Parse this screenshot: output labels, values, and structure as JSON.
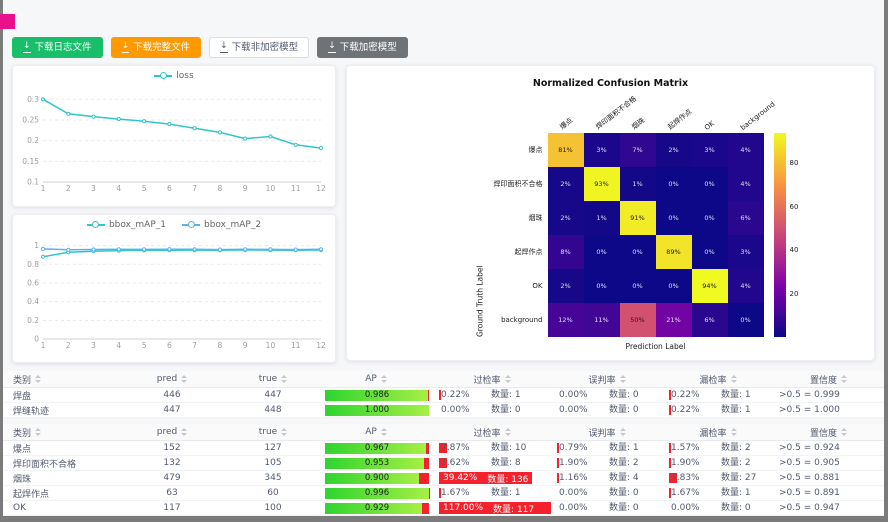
{
  "colors": {
    "accent_pink": "#ea0f8b",
    "series_teal": "#2ec7c9",
    "series_blue": "#5ab1ef",
    "bar_green_start": "#2fd42f",
    "bar_green_end": "#a6ef45",
    "bar_red": "#f5222d",
    "btn_green": "#19be6b",
    "btn_orange": "#ff9900",
    "btn_dark": "#6e7378"
  },
  "icons": {
    "download": "↓"
  },
  "toolbar": {
    "buttons": [
      {
        "id": "download-log-file",
        "label": "下载日志文件",
        "variant": "green"
      },
      {
        "id": "download-full-file",
        "label": "下载完整文件",
        "variant": "orange"
      },
      {
        "id": "download-unencrypted-model",
        "label": "下载非加密模型",
        "variant": "default"
      },
      {
        "id": "download-encrypted-model",
        "label": "下载加密模型",
        "variant": "dark"
      }
    ]
  },
  "chart_data": [
    {
      "type": "line",
      "legend": [
        "loss"
      ],
      "x": [
        1,
        2,
        3,
        4,
        5,
        6,
        7,
        8,
        9,
        10,
        11,
        12
      ],
      "series": [
        {
          "name": "loss",
          "color": "#2ec7c9",
          "values": [
            0.3,
            0.265,
            0.258,
            0.252,
            0.247,
            0.24,
            0.23,
            0.22,
            0.205,
            0.21,
            0.19,
            0.182
          ]
        }
      ],
      "yticks": [
        0.1,
        0.15,
        0.2,
        0.25,
        0.3
      ],
      "ylim": [
        0.1,
        0.32
      ],
      "grid": "dashed-horizontal",
      "legend_position": "top-center"
    },
    {
      "type": "line",
      "legend": [
        "bbox_mAP_1",
        "bbox_mAP_2"
      ],
      "x": [
        1,
        2,
        3,
        4,
        5,
        6,
        7,
        8,
        9,
        10,
        11,
        12
      ],
      "series": [
        {
          "name": "bbox_mAP_1",
          "color": "#2ec7c9",
          "values": [
            0.88,
            0.928,
            0.94,
            0.946,
            0.95,
            0.951,
            0.952,
            0.951,
            0.953,
            0.952,
            0.951,
            0.953
          ]
        },
        {
          "name": "bbox_mAP_2",
          "color": "#5ab1ef",
          "values": [
            0.965,
            0.955,
            0.958,
            0.96,
            0.959,
            0.961,
            0.96,
            0.957,
            0.96,
            0.959,
            0.957,
            0.96
          ]
        }
      ],
      "yticks": [
        0,
        0.2,
        0.4,
        0.6,
        0.8,
        1
      ],
      "ylim": [
        0,
        1.06
      ],
      "grid": "dashed-horizontal",
      "legend_position": "top-center"
    },
    {
      "type": "heatmap",
      "title": "Normalized Confusion Matrix",
      "xlabel": "Prediction Label",
      "ylabel": "Ground Truth Label",
      "labels": [
        "爆点",
        "焊印面积不合格",
        "烟珠",
        "起焊作点",
        "OK",
        "background"
      ],
      "values": [
        [
          81,
          3,
          7,
          2,
          3,
          4
        ],
        [
          2,
          93,
          1,
          0,
          0,
          4
        ],
        [
          2,
          1,
          91,
          0,
          0,
          6
        ],
        [
          8,
          0,
          0,
          89,
          0,
          3
        ],
        [
          2,
          0,
          0,
          0,
          94,
          4
        ],
        [
          12,
          11,
          50,
          21,
          6,
          0
        ]
      ],
      "unit": "%",
      "vmax": 94,
      "colorbar_ticks": [
        20,
        40,
        60,
        80
      ],
      "colormap": "plasma"
    }
  ],
  "tables": {
    "columns": [
      "类别",
      "pred",
      "true",
      "AP",
      "过检率",
      "误判率",
      "漏检率",
      "置信度"
    ],
    "qty_label": "数量:",
    "groups": [
      {
        "rows": [
          {
            "name": "焊盘",
            "pred": 446,
            "true": 447,
            "ap": "0.986",
            "over_pct": "0.22%",
            "over_cnt": 1,
            "mis_pct": "0.00%",
            "mis_cnt": 0,
            "miss_pct": "0.22%",
            "miss_cnt": 1,
            "conf": ">0.5 = 0.999"
          },
          {
            "name": "焊缝轨迹",
            "pred": 447,
            "true": 448,
            "ap": "1.000",
            "over_pct": "0.00%",
            "over_cnt": 0,
            "mis_pct": "0.00%",
            "mis_cnt": 0,
            "miss_pct": "0.22%",
            "miss_cnt": 1,
            "conf": ">0.5 = 1.000"
          }
        ]
      },
      {
        "rows": [
          {
            "name": "爆点",
            "pred": 152,
            "true": 127,
            "ap": "0.967",
            "over_pct": "7.87%",
            "over_cnt": 10,
            "mis_pct": "0.79%",
            "mis_cnt": 1,
            "miss_pct": "1.57%",
            "miss_cnt": 2,
            "conf": ">0.5 = 0.924"
          },
          {
            "name": "焊印面积不合格",
            "pred": 132,
            "true": 105,
            "ap": "0.953",
            "over_pct": "7.62%",
            "over_cnt": 8,
            "mis_pct": "1.90%",
            "mis_cnt": 2,
            "miss_pct": "1.90%",
            "miss_cnt": 2,
            "conf": ">0.5 = 0.905"
          },
          {
            "name": "烟珠",
            "pred": 479,
            "true": 345,
            "ap": "0.900",
            "over_pct": "39.42%",
            "over_cnt": 136,
            "mis_pct": "1.16%",
            "mis_cnt": 4,
            "miss_pct": "7.83%",
            "miss_cnt": 27,
            "conf": ">0.5 = 0.881"
          },
          {
            "name": "起焊作点",
            "pred": 63,
            "true": 60,
            "ap": "0.996",
            "over_pct": "1.67%",
            "over_cnt": 1,
            "mis_pct": "0.00%",
            "mis_cnt": 0,
            "miss_pct": "1.67%",
            "miss_cnt": 1,
            "conf": ">0.5 = 0.891"
          },
          {
            "name": "OK",
            "pred": 117,
            "true": 100,
            "ap": "0.929",
            "over_pct": "117.00%",
            "over_cnt": 117,
            "mis_pct": "0.00%",
            "mis_cnt": 0,
            "miss_pct": "0.00%",
            "miss_cnt": 0,
            "conf": ">0.5 = 0.947"
          }
        ]
      }
    ]
  }
}
